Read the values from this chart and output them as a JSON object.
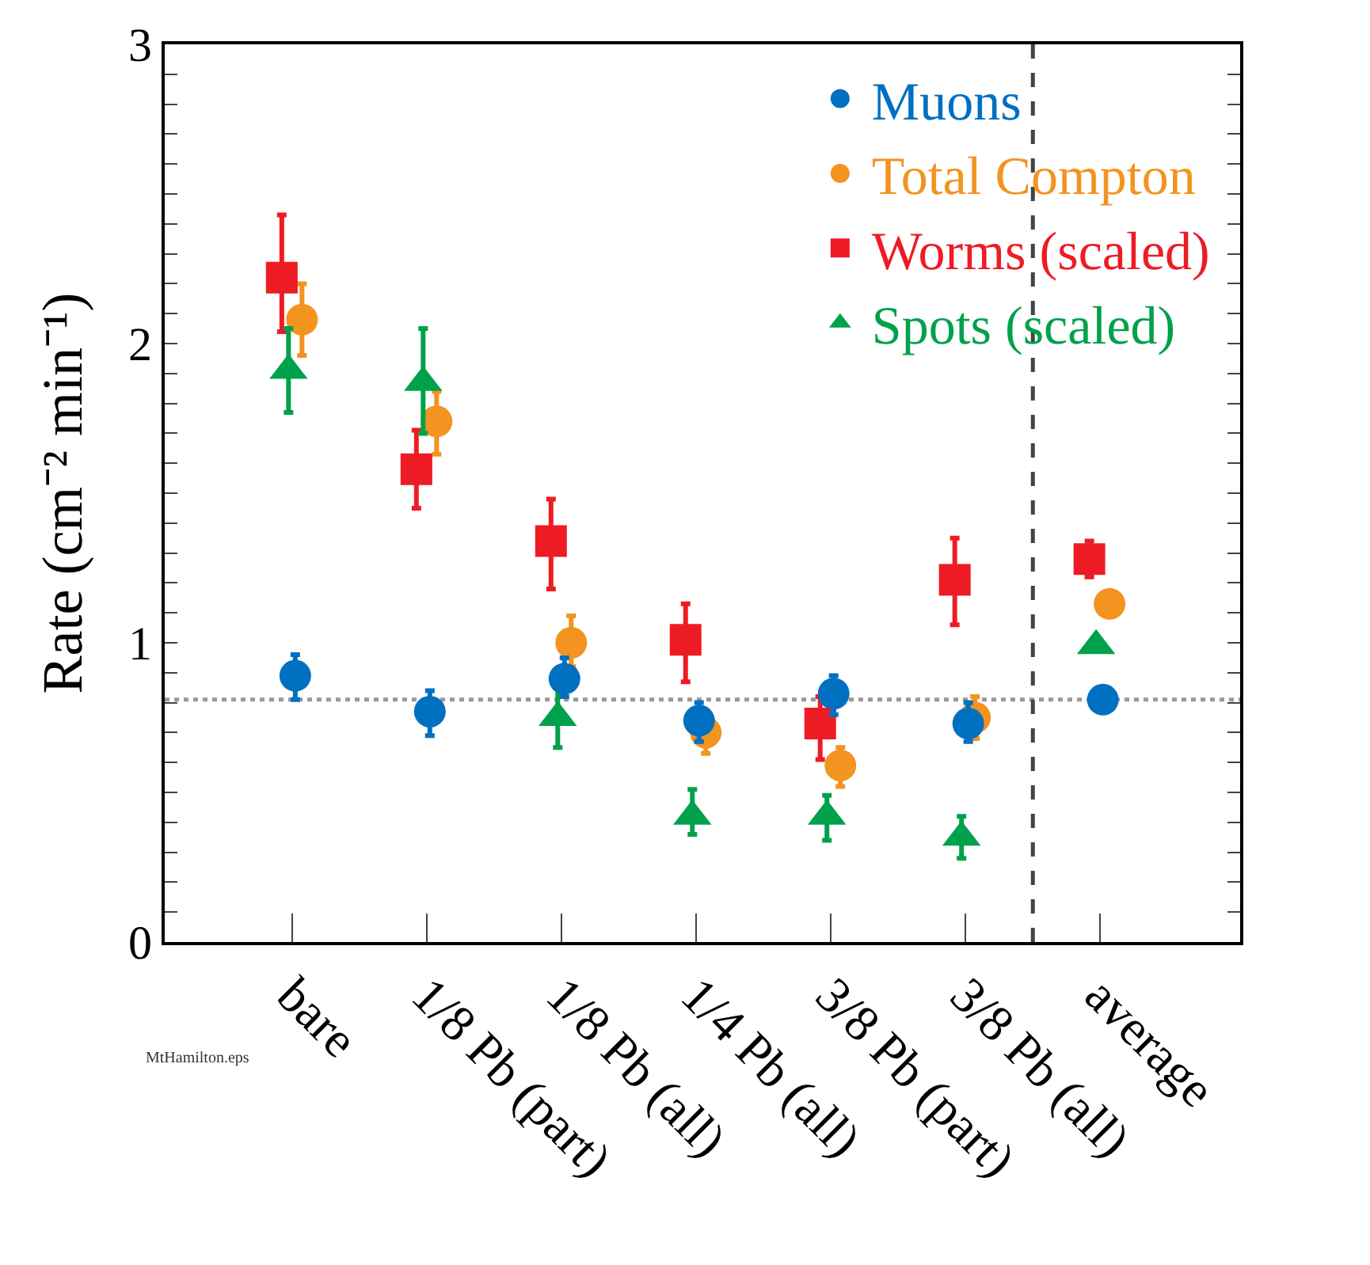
{
  "chart_data": {
    "type": "scatter",
    "ylabel": "Rate (cm⁻² min⁻¹)",
    "categories": [
      "bare",
      "1/8 Pb (part)",
      "1/8 Pb (all)",
      "1/4 Pb (all)",
      "3/8 Pb (part)",
      "3/8 Pb (all)",
      "average"
    ],
    "series": [
      {
        "name": "Muons",
        "color": "#0070c0",
        "marker": "circle",
        "values": [
          0.89,
          0.77,
          0.88,
          0.74,
          0.83,
          0.73,
          0.81
        ],
        "errors": [
          [
            0.81,
            0.96
          ],
          [
            0.69,
            0.84
          ],
          [
            0.82,
            0.95
          ],
          [
            0.67,
            0.8
          ],
          [
            0.76,
            0.89
          ],
          [
            0.67,
            0.8
          ],
          null
        ]
      },
      {
        "name": "Total Compton",
        "color": "#f39320",
        "marker": "circle",
        "values": [
          2.08,
          1.74,
          1.0,
          0.7,
          0.59,
          0.75,
          1.13
        ],
        "errors": [
          [
            1.96,
            2.2
          ],
          [
            1.63,
            1.84
          ],
          [
            0.92,
            1.09
          ],
          [
            0.63,
            0.77
          ],
          [
            0.52,
            0.65
          ],
          [
            0.68,
            0.82
          ],
          null
        ]
      },
      {
        "name": "Worms (scaled)",
        "color": "#ed1c24",
        "marker": "square",
        "values": [
          2.22,
          1.58,
          1.34,
          1.01,
          0.73,
          1.21,
          1.28
        ],
        "errors": [
          [
            2.04,
            2.43
          ],
          [
            1.45,
            1.71
          ],
          [
            1.18,
            1.48
          ],
          [
            0.87,
            1.13
          ],
          [
            0.61,
            0.82
          ],
          [
            1.06,
            1.35
          ],
          [
            1.22,
            1.34
          ]
        ]
      },
      {
        "name": "Spots (scaled)",
        "color": "#00a14b",
        "marker": "triangle",
        "values": [
          1.91,
          1.87,
          0.75,
          0.42,
          0.42,
          0.35,
          0.99
        ],
        "errors": [
          [
            1.77,
            2.05
          ],
          [
            1.7,
            2.05
          ],
          [
            0.65,
            0.85
          ],
          [
            0.36,
            0.51
          ],
          [
            0.34,
            0.49
          ],
          [
            0.28,
            0.42
          ],
          null
        ]
      }
    ],
    "ylim": [
      0,
      3
    ],
    "yticks": [
      0,
      {
        "value": 0.1,
        "label": null
      },
      {
        "value": 0.2,
        "label": null
      },
      {
        "value": 0.3,
        "label": null
      },
      {
        "value": 0.4,
        "label": null
      },
      {
        "value": 0.5,
        "label": null
      },
      {
        "value": 0.6,
        "label": null
      },
      {
        "value": 0.7,
        "label": null
      },
      {
        "value": 0.8,
        "label": null
      },
      {
        "value": 0.9,
        "label": null
      },
      1,
      {
        "value": 1.1,
        "label": null
      },
      {
        "value": 1.2,
        "label": null
      },
      {
        "value": 1.3,
        "label": null
      },
      {
        "value": 1.4,
        "label": null
      },
      {
        "value": 1.5,
        "label": null
      },
      {
        "value": 1.6,
        "label": null
      },
      {
        "value": 1.7,
        "label": null
      },
      {
        "value": 1.8,
        "label": null
      },
      {
        "value": 1.9,
        "label": null
      },
      2,
      {
        "value": 2.1,
        "label": null
      },
      {
        "value": 2.2,
        "label": null
      },
      {
        "value": 2.3,
        "label": null
      },
      {
        "value": 2.4,
        "label": null
      },
      {
        "value": 2.5,
        "label": null
      },
      {
        "value": 2.6,
        "label": null
      },
      {
        "value": 2.7,
        "label": null
      },
      {
        "value": 2.8,
        "label": null
      },
      {
        "value": 2.9,
        "label": null
      },
      3
    ],
    "ref_lines": [
      {
        "axis": "y",
        "value": 0.81,
        "color": "#999999",
        "line_style": "dotted"
      }
    ],
    "annotations": [
      "MtHamilton.eps"
    ],
    "grid": false,
    "legend": "top right"
  }
}
